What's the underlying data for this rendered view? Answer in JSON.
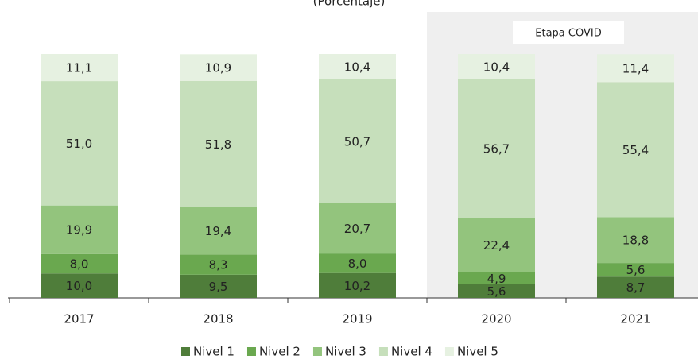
{
  "chart_data": {
    "type": "stacked-bar",
    "subtitle": "(Porcentaje)",
    "annotation": "Etapa COVID",
    "categories": [
      "2017",
      "2018",
      "2019",
      "2020",
      "2021"
    ],
    "ylim": [
      0,
      100
    ],
    "series": [
      {
        "name": "Nivel 1",
        "color": "#4f7d3a",
        "values": [
          10.0,
          9.5,
          10.2,
          5.6,
          8.7
        ],
        "value_labels": [
          "10,0",
          "9,5",
          "10,2",
          "5,6",
          "8,7"
        ]
      },
      {
        "name": "Nivel 2",
        "color": "#6aa84f",
        "values": [
          8.0,
          8.3,
          8.0,
          4.9,
          5.6
        ],
        "value_labels": [
          "8,0",
          "8,3",
          "8,0",
          "4,9",
          "5,6"
        ]
      },
      {
        "name": "Nivel 3",
        "color": "#93c47d",
        "values": [
          19.9,
          19.4,
          20.7,
          22.4,
          18.8
        ],
        "value_labels": [
          "19,9",
          "19,4",
          "20,7",
          "22,4",
          "18,8"
        ]
      },
      {
        "name": "Nivel 4",
        "color": "#c6dfbb",
        "values": [
          51.0,
          51.8,
          50.7,
          56.7,
          55.4
        ],
        "value_labels": [
          "51,0",
          "51,8",
          "50,7",
          "56,7",
          "55,4"
        ]
      },
      {
        "name": "Nivel 5",
        "color": "#e6f1e1",
        "values": [
          11.1,
          10.9,
          10.4,
          10.4,
          11.4
        ],
        "value_labels": [
          "11,1",
          "10,9",
          "10,4",
          "10,4",
          "11,4"
        ]
      }
    ]
  }
}
